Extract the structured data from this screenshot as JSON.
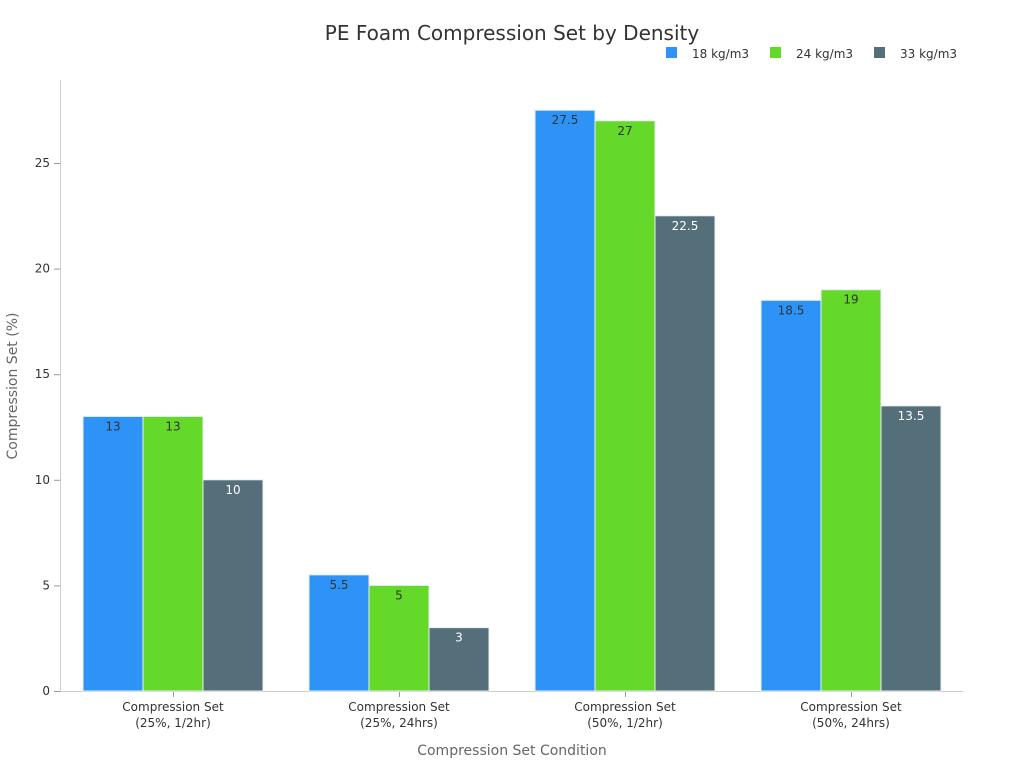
{
  "chart_data": {
    "type": "bar",
    "title": "PE Foam Compression Set by Density",
    "xlabel": "Compression Set Condition",
    "ylabel": "Compression Set (%)",
    "ylim": [
      0,
      29
    ],
    "yticks": [
      0,
      5,
      10,
      15,
      20,
      25
    ],
    "grid": false,
    "legend_position": "top-right",
    "categories": [
      [
        "Compression Set",
        "(25%, 1/2hr)"
      ],
      [
        "Compression Set",
        "(25%, 24hrs)"
      ],
      [
        "Compression Set",
        "(50%, 1/2hr)"
      ],
      [
        "Compression Set",
        "(50%, 24hrs)"
      ]
    ],
    "series": [
      {
        "name": "18 kg/m3",
        "color": "#2E93F7",
        "label_color": "#333333",
        "values": [
          13,
          5.5,
          27.5,
          18.5
        ]
      },
      {
        "name": "24 kg/m3",
        "color": "#64D929",
        "label_color": "#333333",
        "values": [
          13,
          5,
          27,
          19
        ]
      },
      {
        "name": "33 kg/m3",
        "color": "#546E7A",
        "label_color": "#ffffff",
        "values": [
          10,
          3,
          22.5,
          13.5
        ]
      }
    ]
  }
}
